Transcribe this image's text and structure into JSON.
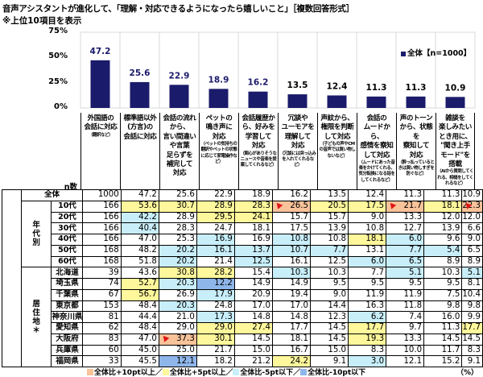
{
  "title": "音声アシスタントが進化して、「理解・対応できるようになったら嬉しいこと」［複数回答形式］",
  "subtitle": "※上位10項目を表示",
  "chart_data": {
    "type": "bar",
    "ylim": [
      0,
      75
    ],
    "yticks": [
      "0%",
      "25%",
      "50%",
      "75%"
    ],
    "grid": true,
    "legend_placement": "top-right",
    "bar_color": "#1b1b6b",
    "series": [
      {
        "name": "全体【n=1000】",
        "values": [
          47.2,
          25.6,
          22.9,
          18.9,
          16.2,
          13.5,
          12.4,
          11.3,
          11.3,
          10.9
        ]
      }
    ],
    "categories": [
      {
        "main": "外国語の\n会話に対応",
        "sub": "（翻訳など）"
      },
      {
        "main": "標準語以外\n(方言)の\n会話に対応",
        "sub": ""
      },
      {
        "main": "会話の流れ\nから、\n言い間違い\nや言葉\n足らずを\n補完して\n対応",
        "sub": ""
      },
      {
        "main": "ペットの\n鳴き声に\n対応",
        "sub": "（ペットの気持ちの翻訳やペットの状態に応じて家電操作など）"
      },
      {
        "main": "会話履歴か\nら、好みを\n学習して\n対応",
        "sub": "（関心がありそうなニュースや音楽を提案してくれるなど）"
      },
      {
        "main": "冗談や\nユーモアを\n理解して\n対応",
        "sub": "（冗談には突っ込みを入れてくれるなど）"
      },
      {
        "main": "声紋から、\n権限を判断\nして対応",
        "sub": "（子どもの声やCMの音声では買い物しないなど）"
      },
      {
        "main": "会話の\nムードから、\n感情を察知\nして対応",
        "sub": "（ムードにあった音楽をかけてくれる、気分転換になる話をしてくれるなど）"
      },
      {
        "main": "声のトーン\nから、状態を\n察知して\n対応",
        "sub": "（酔っ払っているときは買い物しすぎを防ぐなど）"
      },
      {
        "main": "雑談を\n楽しみたい\nとき用に、\n\"聞き上手\nモード\"を\n搭載",
        "sub": "（AIから質問してくれる、相槌をしてくれるなど）"
      }
    ]
  },
  "table": {
    "n_header": "n数",
    "total": {
      "label": "全体",
      "n": "1000",
      "values": [
        "47.2",
        "25.6",
        "22.9",
        "18.9",
        "16.2",
        "13.5",
        "12.4",
        "11.3",
        "11.3",
        "10.9"
      ],
      "hl": [
        "",
        "",
        "",
        "",
        "",
        "",
        "",
        "",
        "",
        ""
      ]
    },
    "groups": [
      {
        "label": "年\n代\n別",
        "rows": [
          {
            "label": "10代",
            "n": "166",
            "values": [
              "53.6",
              "30.7",
              "28.9",
              "28.3",
              "26.5",
              "20.5",
              "17.5",
              "21.7",
              "18.1",
              "22.3"
            ],
            "hl": [
              "y",
              "y",
              "y",
              "y",
              "o",
              "y",
              "y",
              "o",
              "y",
              "o"
            ]
          },
          {
            "label": "20代",
            "n": "166",
            "values": [
              "42.2",
              "28.9",
              "29.5",
              "24.1",
              "15.7",
              "15.7",
              "9.0",
              "13.3",
              "12.0",
              "12.0"
            ],
            "hl": [
              "b",
              "",
              "y",
              "y",
              "",
              "",
              "",
              "",
              "",
              ""
            ]
          },
          {
            "label": "30代",
            "n": "166",
            "values": [
              "40.4",
              "28.3",
              "24.7",
              "18.1",
              "17.5",
              "13.9",
              "10.8",
              "12.7",
              "13.9",
              "6.6"
            ],
            "hl": [
              "b",
              "",
              "",
              "",
              "",
              "",
              "",
              "",
              "",
              ""
            ]
          },
          {
            "label": "40代",
            "n": "166",
            "values": [
              "47.0",
              "25.3",
              "16.9",
              "16.9",
              "10.8",
              "10.8",
              "18.1",
              "6.0",
              "9.6",
              "9.0"
            ],
            "hl": [
              "",
              "",
              "b",
              "",
              "b",
              "",
              "y",
              "b",
              "",
              ""
            ]
          },
          {
            "label": "50代",
            "n": "168",
            "values": [
              "48.2",
              "20.2",
              "16.1",
              "13.7",
              "10.7",
              "7.7",
              "13.1",
              "7.7",
              "5.4",
              "6.5"
            ],
            "hl": [
              "",
              "b",
              "b",
              "b",
              "b",
              "b",
              "",
              "b",
              "b",
              ""
            ]
          },
          {
            "label": "60代",
            "n": "168",
            "values": [
              "51.8",
              "20.2",
              "21.4",
              "12.5",
              "16.1",
              "12.5",
              "6.0",
              "6.5",
              "8.9",
              "8.9"
            ],
            "hl": [
              "",
              "b",
              "",
              "b",
              "",
              "",
              "b",
              "b",
              "",
              ""
            ]
          }
        ]
      },
      {
        "label": "居\n住\n地\n＊",
        "rows": [
          {
            "label": "北海道",
            "n": "39",
            "values": [
              "43.6",
              "30.8",
              "28.2",
              "15.4",
              "10.3",
              "10.3",
              "7.7",
              "5.1",
              "10.3",
              "5.1"
            ],
            "hl": [
              "",
              "y",
              "y",
              "",
              "b",
              "",
              "",
              "b",
              "",
              "b"
            ]
          },
          {
            "label": "埼玉県",
            "n": "74",
            "values": [
              "52.7",
              "20.3",
              "12.2",
              "14.9",
              "14.9",
              "9.5",
              "9.5",
              "9.5",
              "9.5",
              "8.1"
            ],
            "hl": [
              "y",
              "b",
              "B",
              "",
              "",
              "",
              "",
              "",
              "",
              ""
            ]
          },
          {
            "label": "千葉県",
            "n": "67",
            "values": [
              "56.7",
              "26.9",
              "17.9",
              "20.9",
              "19.4",
              "9.0",
              "11.9",
              "11.9",
              "7.5",
              "10.4"
            ],
            "hl": [
              "y",
              "",
              "b",
              "",
              "",
              "",
              "",
              "",
              "",
              ""
            ]
          },
          {
            "label": "東京都",
            "n": "153",
            "values": [
              "48.4",
              "20.3",
              "24.8",
              "17.0",
              "17.0",
              "14.4",
              "16.3",
              "11.8",
              "9.8",
              "9.8"
            ],
            "hl": [
              "",
              "b",
              "",
              "",
              "",
              "",
              "",
              "",
              "",
              ""
            ]
          },
          {
            "label": "神奈川県",
            "n": "81",
            "values": [
              "44.4",
              "21.0",
              "17.3",
              "14.8",
              "14.8",
              "12.3",
              "6.2",
              "7.4",
              "16.0",
              "9.9"
            ],
            "hl": [
              "",
              "",
              "b",
              "",
              "",
              "",
              "b",
              "",
              "",
              ""
            ]
          },
          {
            "label": "愛知県",
            "n": "62",
            "values": [
              "48.4",
              "29.0",
              "29.0",
              "27.4",
              "17.7",
              "14.5",
              "17.7",
              "9.7",
              "11.3",
              "17.7"
            ],
            "hl": [
              "",
              "",
              "y",
              "y",
              "",
              "",
              "y",
              "",
              "",
              "y"
            ]
          },
          {
            "label": "大阪府",
            "n": "83",
            "values": [
              "47.0",
              "37.3",
              "30.1",
              "14.5",
              "18.1",
              "14.5",
              "19.3",
              "13.3",
              "14.5",
              "14.5"
            ],
            "hl": [
              "",
              "o",
              "y",
              "",
              "",
              "",
              "y",
              "",
              "",
              ""
            ]
          },
          {
            "label": "兵庫県",
            "n": "60",
            "values": [
              "45.0",
              "25.0",
              "21.7",
              "15.0",
              "16.7",
              "15.0",
              "8.3",
              "10.0",
              "11.7",
              "8.3"
            ],
            "hl": [
              "",
              "",
              "",
              "",
              "",
              "",
              "",
              "",
              "",
              ""
            ]
          },
          {
            "label": "福岡県",
            "n": "33",
            "values": [
              "45.5",
              "12.1",
              "18.2",
              "21.2",
              "24.2",
              "9.1",
              "3.0",
              "12.1",
              "15.2",
              "9.1"
            ],
            "hl": [
              "",
              "B",
              "",
              "",
              "y",
              "",
              "b",
              "",
              "",
              ""
            ]
          }
        ]
      }
    ]
  },
  "legend_footer": [
    {
      "label": "全体比+10pt以上／",
      "color": "#f9c39a"
    },
    {
      "label": "全体比+5pt以上／",
      "color": "#fff79b"
    },
    {
      "label": "全体比-5pt以下／",
      "color": "#c8eefa"
    },
    {
      "label": "全体比-10pt以下",
      "color": "#8fb6ea"
    }
  ],
  "unit": "（%）"
}
